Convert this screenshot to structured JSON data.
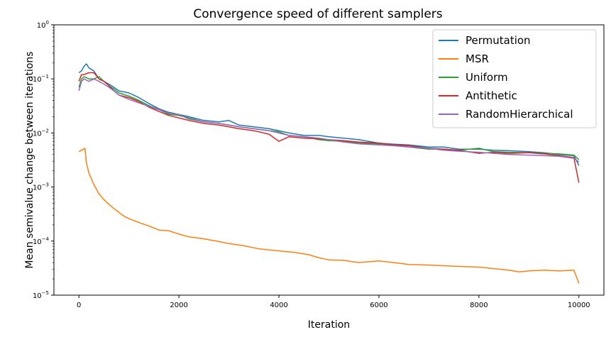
{
  "chart_data": {
    "type": "line",
    "title": "Convergence speed of different samplers",
    "xlabel": "Iteration",
    "ylabel": "Mean semivalue change between iterations",
    "xlim": [
      -500,
      10500
    ],
    "ylim": [
      1e-05,
      1
    ],
    "yscale": "log",
    "grid": false,
    "legend_position": "top-right",
    "x_ticks": [
      {
        "value": 0,
        "label": "0"
      },
      {
        "value": 2000,
        "label": "2000"
      },
      {
        "value": 4000,
        "label": "4000"
      },
      {
        "value": 6000,
        "label": "6000"
      },
      {
        "value": 8000,
        "label": "8000"
      },
      {
        "value": 10000,
        "label": "10000"
      }
    ],
    "y_ticks": [
      {
        "value": 1e-05,
        "base": "10",
        "exp": "−5"
      },
      {
        "value": 0.0001,
        "base": "10",
        "exp": "−4"
      },
      {
        "value": 0.001,
        "base": "10",
        "exp": "−3"
      },
      {
        "value": 0.01,
        "base": "10",
        "exp": "−2"
      },
      {
        "value": 0.1,
        "base": "10",
        "exp": "−1"
      },
      {
        "value": 1,
        "base": "10",
        "exp": "0"
      }
    ],
    "series": [
      {
        "name": "Permutation",
        "color": "#1f77b4",
        "points": [
          [
            0,
            0.13
          ],
          [
            50,
            0.14
          ],
          [
            100,
            0.17
          ],
          [
            150,
            0.19
          ],
          [
            200,
            0.16
          ],
          [
            300,
            0.14
          ],
          [
            400,
            0.1
          ],
          [
            500,
            0.09
          ],
          [
            600,
            0.08
          ],
          [
            700,
            0.07
          ],
          [
            800,
            0.06
          ],
          [
            1000,
            0.055
          ],
          [
            1200,
            0.045
          ],
          [
            1400,
            0.035
          ],
          [
            1600,
            0.028
          ],
          [
            1800,
            0.024
          ],
          [
            2000,
            0.022
          ],
          [
            2200,
            0.02
          ],
          [
            2500,
            0.017
          ],
          [
            2800,
            0.016
          ],
          [
            3000,
            0.017
          ],
          [
            3200,
            0.014
          ],
          [
            3500,
            0.013
          ],
          [
            3800,
            0.012
          ],
          [
            4000,
            0.011
          ],
          [
            4200,
            0.01
          ],
          [
            4500,
            0.009
          ],
          [
            4800,
            0.009
          ],
          [
            5000,
            0.0085
          ],
          [
            5300,
            0.008
          ],
          [
            5600,
            0.0075
          ],
          [
            6000,
            0.0065
          ],
          [
            6300,
            0.0062
          ],
          [
            6600,
            0.006
          ],
          [
            7000,
            0.0055
          ],
          [
            7300,
            0.0055
          ],
          [
            7600,
            0.005
          ],
          [
            8000,
            0.005
          ],
          [
            8300,
            0.0048
          ],
          [
            8600,
            0.0047
          ],
          [
            9000,
            0.0045
          ],
          [
            9300,
            0.0043
          ],
          [
            9600,
            0.004
          ],
          [
            9900,
            0.0038
          ],
          [
            10000,
            0.0025
          ]
        ]
      },
      {
        "name": "MSR",
        "color": "#ff7f0e",
        "points": [
          [
            0,
            0.0045
          ],
          [
            50,
            0.0048
          ],
          [
            120,
            0.0052
          ],
          [
            150,
            0.0028
          ],
          [
            200,
            0.0018
          ],
          [
            300,
            0.0011
          ],
          [
            400,
            0.00075
          ],
          [
            500,
            0.00058
          ],
          [
            600,
            0.00048
          ],
          [
            700,
            0.0004
          ],
          [
            800,
            0.00034
          ],
          [
            900,
            0.00029
          ],
          [
            1000,
            0.00026
          ],
          [
            1200,
            0.00022
          ],
          [
            1400,
            0.00019
          ],
          [
            1600,
            0.00016
          ],
          [
            1800,
            0.000155
          ],
          [
            2000,
            0.000135
          ],
          [
            2200,
            0.00012
          ],
          [
            2500,
            0.00011
          ],
          [
            2800,
            9.8e-05
          ],
          [
            3000,
            9e-05
          ],
          [
            3300,
            8.2e-05
          ],
          [
            3600,
            7.2e-05
          ],
          [
            4000,
            6.6e-05
          ],
          [
            4300,
            6.2e-05
          ],
          [
            4600,
            5.6e-05
          ],
          [
            4800,
            4.9e-05
          ],
          [
            5000,
            4.5e-05
          ],
          [
            5300,
            4.4e-05
          ],
          [
            5600,
            4e-05
          ],
          [
            6000,
            4.3e-05
          ],
          [
            6300,
            4e-05
          ],
          [
            6600,
            3.7e-05
          ],
          [
            7000,
            3.6e-05
          ],
          [
            7300,
            3.5e-05
          ],
          [
            7600,
            3.4e-05
          ],
          [
            8000,
            3.3e-05
          ],
          [
            8300,
            3.1e-05
          ],
          [
            8600,
            2.9e-05
          ],
          [
            8800,
            2.7e-05
          ],
          [
            9000,
            2.8e-05
          ],
          [
            9300,
            2.9e-05
          ],
          [
            9600,
            2.8e-05
          ],
          [
            9900,
            2.9e-05
          ],
          [
            10000,
            1.65e-05
          ]
        ]
      },
      {
        "name": "Uniform",
        "color": "#2ca02c",
        "points": [
          [
            0,
            0.07
          ],
          [
            50,
            0.1
          ],
          [
            100,
            0.11
          ],
          [
            200,
            0.1
          ],
          [
            300,
            0.1
          ],
          [
            400,
            0.11
          ],
          [
            500,
            0.09
          ],
          [
            600,
            0.075
          ],
          [
            700,
            0.065
          ],
          [
            800,
            0.055
          ],
          [
            1000,
            0.048
          ],
          [
            1200,
            0.04
          ],
          [
            1400,
            0.032
          ],
          [
            1600,
            0.027
          ],
          [
            1800,
            0.022
          ],
          [
            2000,
            0.021
          ],
          [
            2200,
            0.019
          ],
          [
            2500,
            0.016
          ],
          [
            2800,
            0.015
          ],
          [
            3000,
            0.014
          ],
          [
            3200,
            0.013
          ],
          [
            3500,
            0.012
          ],
          [
            3800,
            0.011
          ],
          [
            4000,
            0.0105
          ],
          [
            4200,
            0.009
          ],
          [
            4500,
            0.0085
          ],
          [
            4800,
            0.0075
          ],
          [
            5000,
            0.0072
          ],
          [
            5300,
            0.007
          ],
          [
            5600,
            0.0065
          ],
          [
            6000,
            0.0063
          ],
          [
            6300,
            0.006
          ],
          [
            6600,
            0.0055
          ],
          [
            7000,
            0.005
          ],
          [
            7300,
            0.005
          ],
          [
            7600,
            0.0048
          ],
          [
            8000,
            0.0052
          ],
          [
            8300,
            0.0045
          ],
          [
            8600,
            0.0044
          ],
          [
            9000,
            0.0043
          ],
          [
            9300,
            0.0042
          ],
          [
            9600,
            0.0041
          ],
          [
            9900,
            0.0039
          ],
          [
            10000,
            0.0032
          ]
        ]
      },
      {
        "name": "Antithetic",
        "color": "#d62728",
        "points": [
          [
            0,
            0.09
          ],
          [
            50,
            0.12
          ],
          [
            100,
            0.12
          ],
          [
            200,
            0.13
          ],
          [
            300,
            0.13
          ],
          [
            400,
            0.1
          ],
          [
            500,
            0.09
          ],
          [
            600,
            0.075
          ],
          [
            700,
            0.06
          ],
          [
            800,
            0.05
          ],
          [
            1000,
            0.045
          ],
          [
            1200,
            0.038
          ],
          [
            1400,
            0.03
          ],
          [
            1600,
            0.025
          ],
          [
            1800,
            0.021
          ],
          [
            2000,
            0.019
          ],
          [
            2200,
            0.017
          ],
          [
            2500,
            0.015
          ],
          [
            2800,
            0.014
          ],
          [
            3000,
            0.013
          ],
          [
            3200,
            0.012
          ],
          [
            3500,
            0.011
          ],
          [
            3800,
            0.0095
          ],
          [
            4000,
            0.007
          ],
          [
            4200,
            0.0085
          ],
          [
            4500,
            0.008
          ],
          [
            4800,
            0.0078
          ],
          [
            5000,
            0.0075
          ],
          [
            5300,
            0.0072
          ],
          [
            5600,
            0.0068
          ],
          [
            6000,
            0.0065
          ],
          [
            6300,
            0.006
          ],
          [
            6600,
            0.0058
          ],
          [
            7000,
            0.0052
          ],
          [
            7300,
            0.005
          ],
          [
            7600,
            0.0048
          ],
          [
            8000,
            0.0042
          ],
          [
            8300,
            0.0044
          ],
          [
            8600,
            0.0042
          ],
          [
            9000,
            0.0043
          ],
          [
            9300,
            0.0041
          ],
          [
            9600,
            0.0038
          ],
          [
            9900,
            0.0035
          ],
          [
            10000,
            0.0012
          ]
        ]
      },
      {
        "name": "RandomHierarchical",
        "color": "#9467bd",
        "points": [
          [
            0,
            0.06
          ],
          [
            50,
            0.09
          ],
          [
            100,
            0.1
          ],
          [
            200,
            0.09
          ],
          [
            300,
            0.1
          ],
          [
            400,
            0.09
          ],
          [
            500,
            0.08
          ],
          [
            600,
            0.07
          ],
          [
            700,
            0.06
          ],
          [
            800,
            0.05
          ],
          [
            1000,
            0.042
          ],
          [
            1200,
            0.036
          ],
          [
            1400,
            0.031
          ],
          [
            1600,
            0.027
          ],
          [
            1800,
            0.023
          ],
          [
            2000,
            0.022
          ],
          [
            2200,
            0.018
          ],
          [
            2500,
            0.016
          ],
          [
            2800,
            0.015
          ],
          [
            3000,
            0.014
          ],
          [
            3200,
            0.013
          ],
          [
            3500,
            0.012
          ],
          [
            3800,
            0.011
          ],
          [
            4000,
            0.01
          ],
          [
            4200,
            0.009
          ],
          [
            4500,
            0.0085
          ],
          [
            4800,
            0.008
          ],
          [
            5000,
            0.0075
          ],
          [
            5300,
            0.0068
          ],
          [
            5600,
            0.0063
          ],
          [
            6000,
            0.006
          ],
          [
            6300,
            0.0058
          ],
          [
            6600,
            0.0055
          ],
          [
            7000,
            0.0052
          ],
          [
            7300,
            0.0048
          ],
          [
            7600,
            0.0046
          ],
          [
            8000,
            0.0044
          ],
          [
            8300,
            0.0042
          ],
          [
            8600,
            0.004
          ],
          [
            9000,
            0.0039
          ],
          [
            9300,
            0.0038
          ],
          [
            9600,
            0.0037
          ],
          [
            9900,
            0.0034
          ],
          [
            10000,
            0.0029
          ]
        ]
      }
    ]
  }
}
